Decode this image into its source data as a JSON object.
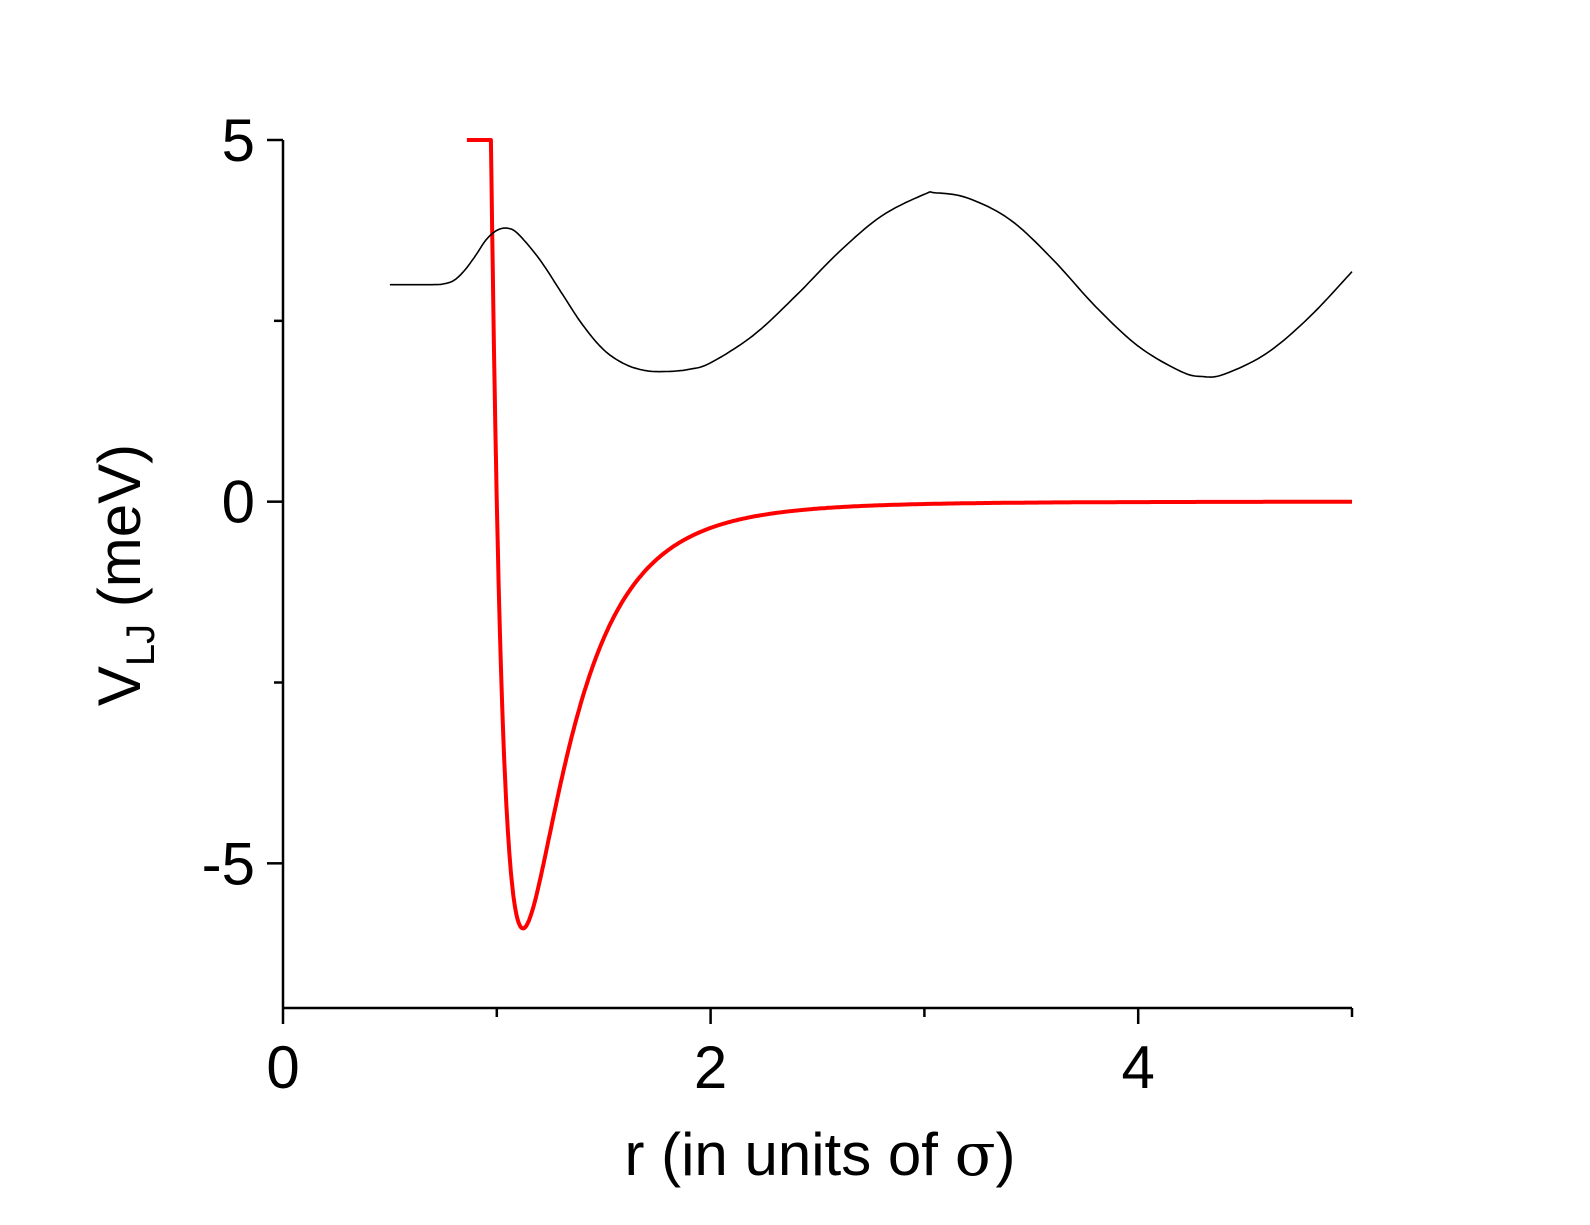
{
  "chart_data": {
    "type": "line",
    "title": "",
    "xlabel": {
      "prefix": "r (in units of ",
      "symbol": "σ",
      "suffix": ")"
    },
    "ylabel": {
      "main": "V",
      "subscript": "LJ",
      "suffix": " (meV)"
    },
    "xlim": [
      0,
      5
    ],
    "ylim": [
      -7,
      5
    ],
    "x_major_ticks": [
      0,
      2,
      4
    ],
    "x_minor_ticks": [
      1,
      3,
      5
    ],
    "x_tick_labels": [
      "0",
      "2",
      "4"
    ],
    "y_major_ticks": [
      5,
      0,
      -5
    ],
    "y_minor_ticks": [
      2.5,
      -2.5
    ],
    "y_tick_labels": [
      "5",
      "0",
      "-5"
    ],
    "grid": false,
    "legend": "none",
    "series": [
      {
        "kind": "lennard-jones",
        "color": "#ff0000",
        "epsilon": 5.9,
        "sigma": 1.0,
        "x_range": [
          0.86,
          5.0
        ],
        "clip_to_ylim": true
      },
      {
        "kind": "oscillating",
        "color": "#000000",
        "x": [
          0.5,
          0.6,
          0.7,
          0.75,
          0.8,
          0.85,
          0.9,
          0.95,
          1.0,
          1.05,
          1.1,
          1.2,
          1.3,
          1.4,
          1.5,
          1.6,
          1.7,
          1.8,
          1.9,
          2.0,
          2.2,
          2.4,
          2.6,
          2.8,
          3.0,
          3.05,
          3.2,
          3.4,
          3.6,
          3.8,
          4.0,
          4.2,
          4.3,
          4.4,
          4.6,
          4.8,
          5.0
        ],
        "y": [
          3.0,
          3.0,
          3.0,
          3.01,
          3.06,
          3.2,
          3.4,
          3.62,
          3.75,
          3.78,
          3.7,
          3.35,
          2.9,
          2.45,
          2.1,
          1.9,
          1.81,
          1.8,
          1.83,
          1.92,
          2.3,
          2.85,
          3.45,
          3.95,
          4.25,
          4.27,
          4.2,
          3.9,
          3.35,
          2.7,
          2.15,
          1.8,
          1.73,
          1.76,
          2.05,
          2.55,
          3.18
        ]
      }
    ]
  }
}
